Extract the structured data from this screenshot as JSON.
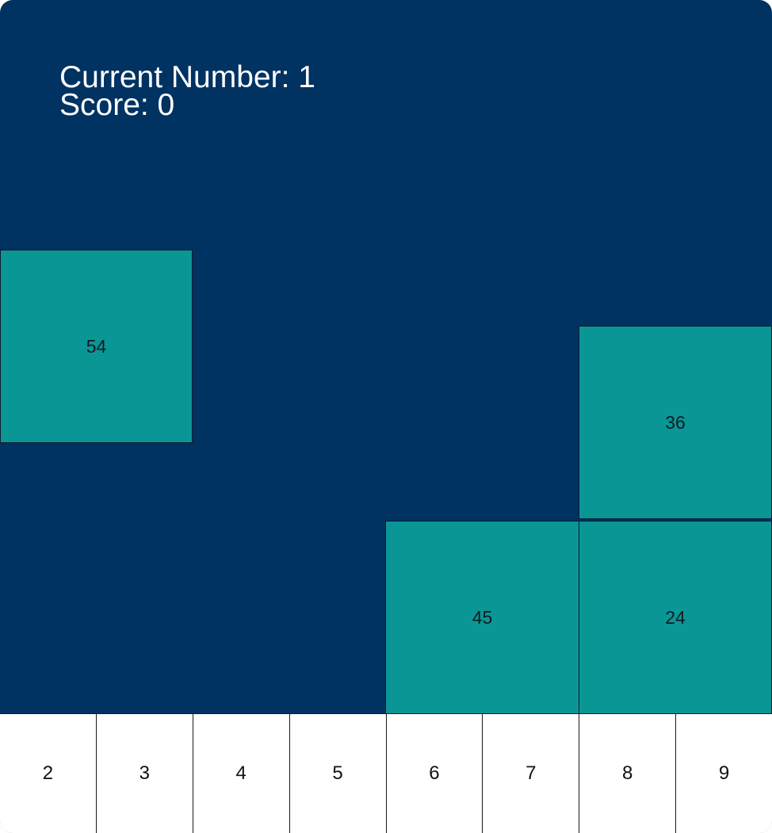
{
  "hud": {
    "current_number_label": "Current Number: 1",
    "score_label": "Score: 0"
  },
  "blocks": [
    {
      "value": "54"
    },
    {
      "value": "36"
    },
    {
      "value": "45"
    },
    {
      "value": "24"
    }
  ],
  "bottom_bar": {
    "cells": [
      "2",
      "3",
      "4",
      "5",
      "6",
      "7",
      "8",
      "9"
    ]
  },
  "colors": {
    "board_background": "#003262",
    "block_fill": "#0b9696",
    "bar_background": "#ffffff",
    "hud_text": "#ffffff"
  }
}
